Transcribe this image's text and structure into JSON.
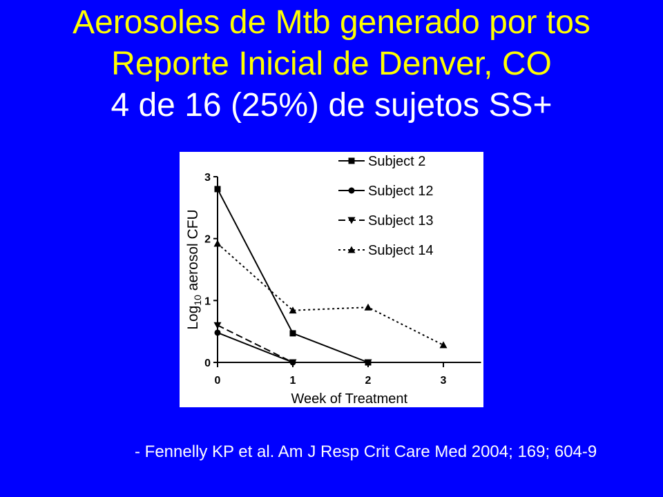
{
  "slide": {
    "title_lines": [
      "Aerosoles de Mtb generado por tos",
      "Reporte Inicial de Denver, CO"
    ],
    "subtitle": "4 de 16 (25%) de sujetos SS+",
    "citation": "- Fennelly KP et al. Am J Resp Crit Care Med 2004; 169; 604-9"
  },
  "colors": {
    "background": "#0000ff",
    "title": "#ffff00",
    "subtitle": "#ffffff",
    "citation": "#ffffff",
    "chart_background": "#ffffff",
    "chart_ink": "#000000"
  },
  "chart_data": {
    "type": "line",
    "xlabel": "Week of Treatment",
    "ylabel": "Log10 aerosol CFU",
    "xlim": [
      0,
      3.5
    ],
    "ylim": [
      0,
      3
    ],
    "xticks": [
      0,
      1,
      2,
      3
    ],
    "yticks": [
      0,
      1,
      2,
      3
    ],
    "grid": false,
    "legend": "top-right",
    "series": [
      {
        "name": "Subject 2",
        "line": "solid",
        "marker": "square",
        "x": [
          0,
          1,
          2
        ],
        "y": [
          2.8,
          0.47,
          0
        ]
      },
      {
        "name": "Subject 12",
        "line": "solid",
        "marker": "circle",
        "x": [
          0,
          1
        ],
        "y": [
          0.48,
          0
        ]
      },
      {
        "name": "Subject 13",
        "line": "dashed",
        "marker": "triangle-down",
        "x": [
          0,
          1,
          2
        ],
        "y": [
          0.6,
          0,
          0
        ]
      },
      {
        "name": "Subject 14",
        "line": "dotted",
        "marker": "triangle-up",
        "x": [
          0,
          1,
          2,
          3
        ],
        "y": [
          1.92,
          0.84,
          0.89,
          0.28
        ]
      }
    ]
  }
}
